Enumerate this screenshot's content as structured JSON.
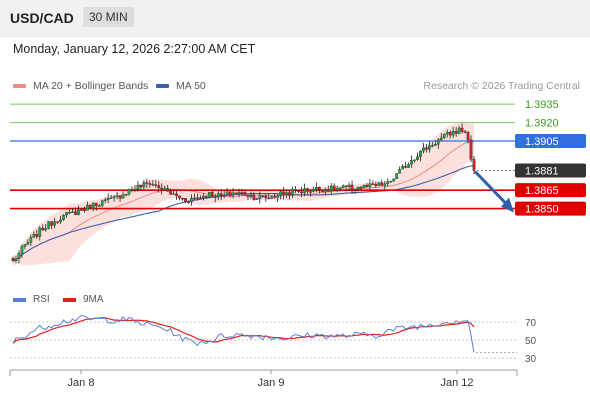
{
  "header": {
    "symbol": "USD/CAD",
    "timeframe": "30 MIN",
    "datetime": "Monday, January 12, 2026 2:27:00 AM CET"
  },
  "legend": {
    "ma_bb": "MA 20 + Bollinger Bands",
    "ma50": "MA 50",
    "credit": "Research © 2026 Trading Central"
  },
  "rsi_legend": {
    "rsi": "RSI",
    "ma": "9MA"
  },
  "colors": {
    "bull": "#2a9d45",
    "bear": "#d02020",
    "resistance": "#7cc95c",
    "pivot": "#2f6fdf",
    "support": "#e00000",
    "bb": "#f3a6a0",
    "ma50": "#3f5fa8",
    "rsi": "#5b7fd6",
    "rsi_ma": "#e0201a"
  },
  "chart_data": {
    "type": "candlestick",
    "x_labels": [
      "Jan 8",
      "Jan 9",
      "Jan 12"
    ],
    "y_range": [
      1.38,
      1.394
    ],
    "levels": [
      {
        "label": "1.3935",
        "value": 1.3935,
        "kind": "resistance"
      },
      {
        "label": "1.3920",
        "value": 1.392,
        "kind": "resistance"
      },
      {
        "label": "1.3905",
        "value": 1.3905,
        "kind": "pivot"
      },
      {
        "label": "1.3881",
        "value": 1.3881,
        "kind": "last"
      },
      {
        "label": "1.3865",
        "value": 1.3865,
        "kind": "support"
      },
      {
        "label": "1.3850",
        "value": 1.385,
        "kind": "support"
      }
    ],
    "price_path": [
      [
        0,
        1.3807
      ],
      [
        4,
        1.382
      ],
      [
        10,
        1.3834
      ],
      [
        16,
        1.3843
      ],
      [
        22,
        1.3848
      ],
      [
        28,
        1.3854
      ],
      [
        34,
        1.3858
      ],
      [
        40,
        1.3866
      ],
      [
        46,
        1.3871
      ],
      [
        50,
        1.3866
      ],
      [
        54,
        1.3861
      ],
      [
        58,
        1.3857
      ],
      [
        62,
        1.3859
      ],
      [
        66,
        1.3862
      ],
      [
        70,
        1.386
      ],
      [
        74,
        1.3863
      ],
      [
        78,
        1.3862
      ],
      [
        82,
        1.3859
      ],
      [
        86,
        1.3859
      ],
      [
        90,
        1.3862
      ],
      [
        96,
        1.3864
      ],
      [
        102,
        1.3866
      ],
      [
        108,
        1.3866
      ],
      [
        114,
        1.3867
      ],
      [
        120,
        1.3868
      ],
      [
        126,
        1.387
      ],
      [
        130,
        1.388
      ],
      [
        134,
        1.389
      ],
      [
        138,
        1.3898
      ],
      [
        142,
        1.3904
      ],
      [
        146,
        1.391
      ],
      [
        150,
        1.3914
      ],
      [
        152,
        1.3913
      ],
      [
        153,
        1.3905
      ],
      [
        154,
        1.3892
      ],
      [
        155,
        1.3881
      ]
    ],
    "rsi": {
      "levels": [
        70,
        50,
        30
      ],
      "last": 36
    }
  }
}
